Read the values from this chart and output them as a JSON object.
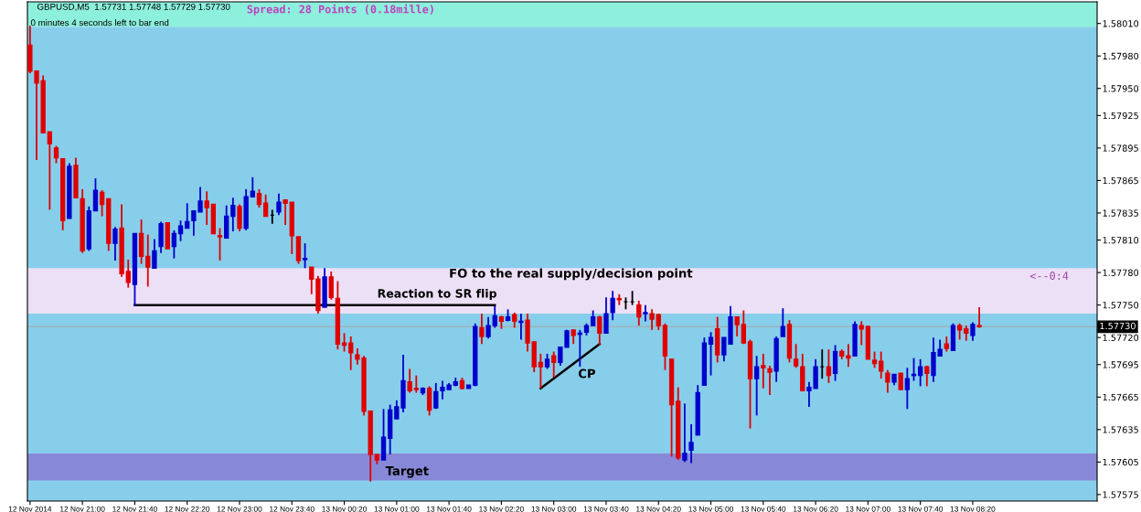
{
  "chart_data": {
    "type": "candlestick",
    "title": "GBPUSD,M5  1.57731 1.57748 1.57729 1.57730",
    "x": [
      "2014-11-12T20:20",
      "2014-11-12T20:25",
      "2014-11-12T20:30",
      "2014-11-12T20:35",
      "2014-11-12T20:40",
      "2014-11-12T20:45",
      "2014-11-12T20:50",
      "2014-11-12T20:55",
      "2014-11-12T21:00",
      "2014-11-12T21:05",
      "2014-11-12T21:10",
      "2014-11-12T21:15",
      "2014-11-12T21:20",
      "2014-11-12T21:25",
      "2014-11-12T21:30",
      "2014-11-12T21:35",
      "2014-11-12T21:40",
      "2014-11-12T21:45",
      "2014-11-12T21:50",
      "2014-11-12T21:55",
      "2014-11-12T22:00",
      "2014-11-12T22:05",
      "2014-11-12T22:10",
      "2014-11-12T22:15",
      "2014-11-12T22:20",
      "2014-11-12T22:25",
      "2014-11-12T22:30",
      "2014-11-12T22:35",
      "2014-11-12T22:40",
      "2014-11-12T22:45",
      "2014-11-12T22:50",
      "2014-11-12T22:55",
      "2014-11-12T23:00",
      "2014-11-12T23:05",
      "2014-11-12T23:10",
      "2014-11-12T23:15",
      "2014-11-12T23:20",
      "2014-11-12T23:25",
      "2014-11-12T23:30",
      "2014-11-12T23:35",
      "2014-11-12T23:40",
      "2014-11-12T23:45",
      "2014-11-12T23:50",
      "2014-11-12T23:55",
      "2014-11-13T00:00",
      "2014-11-13T00:05",
      "2014-11-13T00:10",
      "2014-11-13T00:15",
      "2014-11-13T00:20",
      "2014-11-13T00:25",
      "2014-11-13T00:30",
      "2014-11-13T00:35",
      "2014-11-13T00:40",
      "2014-11-13T00:45",
      "2014-11-13T00:50",
      "2014-11-13T00:55",
      "2014-11-13T01:00",
      "2014-11-13T01:05",
      "2014-11-13T01:10",
      "2014-11-13T01:15",
      "2014-11-13T01:20",
      "2014-11-13T01:25",
      "2014-11-13T01:30",
      "2014-11-13T01:35",
      "2014-11-13T01:40",
      "2014-11-13T01:45",
      "2014-11-13T01:50",
      "2014-11-13T01:55",
      "2014-11-13T02:00",
      "2014-11-13T02:05",
      "2014-11-13T02:10",
      "2014-11-13T02:15",
      "2014-11-13T02:20",
      "2014-11-13T02:25",
      "2014-11-13T02:30",
      "2014-11-13T02:35",
      "2014-11-13T02:40",
      "2014-11-13T02:45",
      "2014-11-13T02:50",
      "2014-11-13T02:55",
      "2014-11-13T03:00",
      "2014-11-13T03:05",
      "2014-11-13T03:10",
      "2014-11-13T03:15",
      "2014-11-13T03:20",
      "2014-11-13T03:25",
      "2014-11-13T03:30",
      "2014-11-13T03:35",
      "2014-11-13T03:40",
      "2014-11-13T03:45",
      "2014-11-13T03:50",
      "2014-11-13T03:55",
      "2014-11-13T04:00",
      "2014-11-13T04:05",
      "2014-11-13T04:10",
      "2014-11-13T04:15",
      "2014-11-13T04:20",
      "2014-11-13T04:25",
      "2014-11-13T04:30",
      "2014-11-13T04:35",
      "2014-11-13T04:40",
      "2014-11-13T04:45",
      "2014-11-13T04:50",
      "2014-11-13T04:55",
      "2014-11-13T05:00",
      "2014-11-13T05:05",
      "2014-11-13T05:10",
      "2014-11-13T05:15",
      "2014-11-13T05:20",
      "2014-11-13T05:25",
      "2014-11-13T05:30",
      "2014-11-13T05:35",
      "2014-11-13T05:40",
      "2014-11-13T05:45",
      "2014-11-13T05:50",
      "2014-11-13T05:55",
      "2014-11-13T06:00",
      "2014-11-13T06:05",
      "2014-11-13T06:10",
      "2014-11-13T06:15",
      "2014-11-13T06:20",
      "2014-11-13T06:25",
      "2014-11-13T06:30",
      "2014-11-13T06:35",
      "2014-11-13T06:40",
      "2014-11-13T06:45",
      "2014-11-13T06:50",
      "2014-11-13T06:55",
      "2014-11-13T07:00",
      "2014-11-13T07:05",
      "2014-11-13T07:10",
      "2014-11-13T07:15",
      "2014-11-13T07:20",
      "2014-11-13T07:25",
      "2014-11-13T07:30",
      "2014-11-13T07:35",
      "2014-11-13T07:40",
      "2014-11-13T07:45",
      "2014-11-13T07:50",
      "2014-11-13T07:55",
      "2014-11-13T08:00",
      "2014-11-13T08:05",
      "2014-11-13T08:10",
      "2014-11-13T08:15",
      "2014-11-13T08:20",
      "2014-11-13T08:25"
    ],
    "ohlc": [
      [
        1.5799,
        1.58008,
        1.57964,
        1.57966
      ],
      [
        1.57966,
        1.57966,
        1.57884,
        1.57955
      ],
      [
        1.57957,
        1.57962,
        1.57909,
        1.57909
      ],
      [
        1.5791,
        1.5791,
        1.57838,
        1.57899
      ],
      [
        1.57895,
        1.57897,
        1.57881,
        1.57886
      ],
      [
        1.57885,
        1.57885,
        1.57819,
        1.57828
      ],
      [
        1.5783,
        1.57881,
        1.5783,
        1.57878
      ],
      [
        1.57879,
        1.57886,
        1.57849,
        1.57849
      ],
      [
        1.57848,
        1.57857,
        1.57798,
        1.578
      ],
      [
        1.57802,
        1.57841,
        1.578,
        1.57837
      ],
      [
        1.57837,
        1.57867,
        1.57837,
        1.57856
      ],
      [
        1.57854,
        1.57856,
        1.57832,
        1.57843
      ],
      [
        1.57848,
        1.57848,
        1.578,
        1.57807
      ],
      [
        1.57807,
        1.57822,
        1.57791,
        1.5782
      ],
      [
        1.57821,
        1.57843,
        1.57776,
        1.57779
      ],
      [
        1.57781,
        1.57792,
        1.57766,
        1.57771
      ],
      [
        1.57769,
        1.57816,
        1.57749,
        1.57816
      ],
      [
        1.57816,
        1.57829,
        1.57788,
        1.57795
      ],
      [
        1.57795,
        1.57815,
        1.57767,
        1.57785
      ],
      [
        1.57784,
        1.57811,
        1.57784,
        1.578
      ],
      [
        1.57804,
        1.57827,
        1.57798,
        1.57825
      ],
      [
        1.57826,
        1.57826,
        1.57802,
        1.57802
      ],
      [
        1.57804,
        1.57819,
        1.57793,
        1.57816
      ],
      [
        1.57816,
        1.57828,
        1.57809,
        1.57823
      ],
      [
        1.57821,
        1.57844,
        1.57821,
        1.57827
      ],
      [
        1.57828,
        1.57837,
        1.57814,
        1.57837
      ],
      [
        1.57836,
        1.57859,
        1.57836,
        1.57846
      ],
      [
        1.57846,
        1.57855,
        1.57824,
        1.5784
      ],
      [
        1.57843,
        1.57843,
        1.57816,
        1.57816
      ],
      [
        1.57814,
        1.57821,
        1.57791,
        1.57813
      ],
      [
        1.57812,
        1.57842,
        1.57812,
        1.57832
      ],
      [
        1.57832,
        1.57849,
        1.57818,
        1.57842
      ],
      [
        1.57841,
        1.57843,
        1.57818,
        1.57821
      ],
      [
        1.57821,
        1.57857,
        1.57819,
        1.5785
      ],
      [
        1.5785,
        1.57868,
        1.5785,
        1.57855
      ],
      [
        1.57853,
        1.57857,
        1.5784,
        1.57843
      ],
      [
        1.57844,
        1.57852,
        1.57832,
        1.57832
      ],
      [
        1.57833,
        1.57838,
        1.57825,
        1.57833
      ],
      [
        1.57836,
        1.57853,
        1.57833,
        1.57845
      ],
      [
        1.57847,
        1.57847,
        1.57824,
        1.57844
      ],
      [
        1.57845,
        1.57845,
        1.57797,
        1.57814
      ],
      [
        1.57813,
        1.57813,
        1.57788,
        1.57791
      ],
      [
        1.57792,
        1.57807,
        1.57784,
        1.57793
      ],
      [
        1.57785,
        1.57785,
        1.5776,
        1.57774
      ],
      [
        1.57774,
        1.57777,
        1.57742,
        1.57745
      ],
      [
        1.57748,
        1.57784,
        1.57748,
        1.57776
      ],
      [
        1.57776,
        1.57781,
        1.57755,
        1.57757
      ],
      [
        1.57756,
        1.57772,
        1.57709,
        1.57714
      ],
      [
        1.57715,
        1.57724,
        1.57707,
        1.57713
      ],
      [
        1.57715,
        1.57721,
        1.5769,
        1.57706
      ],
      [
        1.57704,
        1.5771,
        1.57695,
        1.577
      ],
      [
        1.57701,
        1.57703,
        1.57648,
        1.57652
      ],
      [
        1.57652,
        1.57652,
        1.57587,
        1.57612
      ],
      [
        1.57612,
        1.57612,
        1.57603,
        1.57607
      ],
      [
        1.57607,
        1.57654,
        1.57607,
        1.57628
      ],
      [
        1.57627,
        1.57658,
        1.57612,
        1.57653
      ],
      [
        1.57645,
        1.57662,
        1.57645,
        1.57656
      ],
      [
        1.57655,
        1.57704,
        1.57651,
        1.5768
      ],
      [
        1.57679,
        1.57691,
        1.57669,
        1.57671
      ],
      [
        1.57673,
        1.57685,
        1.57669,
        1.57672
      ],
      [
        1.57669,
        1.57674,
        1.57667,
        1.57673
      ],
      [
        1.57673,
        1.57675,
        1.57648,
        1.57653
      ],
      [
        1.57655,
        1.57678,
        1.57654,
        1.5767
      ],
      [
        1.57671,
        1.5768,
        1.57663,
        1.57674
      ],
      [
        1.57672,
        1.57678,
        1.57672,
        1.57676
      ],
      [
        1.57676,
        1.57683,
        1.57675,
        1.57679
      ],
      [
        1.5768,
        1.57683,
        1.57672,
        1.57673
      ],
      [
        1.57673,
        1.57676,
        1.57673,
        1.57676
      ],
      [
        1.57676,
        1.57733,
        1.57675,
        1.5773
      ],
      [
        1.57729,
        1.57742,
        1.57714,
        1.57721
      ],
      [
        1.57721,
        1.57739,
        1.57719,
        1.57731
      ],
      [
        1.57731,
        1.57749,
        1.57729,
        1.5774
      ],
      [
        1.57739,
        1.5774,
        1.57728,
        1.57735
      ],
      [
        1.57736,
        1.57746,
        1.57735,
        1.57739
      ],
      [
        1.57741,
        1.57743,
        1.57729,
        1.57735
      ],
      [
        1.57734,
        1.57742,
        1.57718,
        1.57735
      ],
      [
        1.57736,
        1.57742,
        1.57707,
        1.57715
      ],
      [
        1.57716,
        1.57716,
        1.57688,
        1.57693
      ],
      [
        1.57697,
        1.57705,
        1.57673,
        1.57693
      ],
      [
        1.57693,
        1.57705,
        1.57691,
        1.577
      ],
      [
        1.57703,
        1.57707,
        1.57683,
        1.57697
      ],
      [
        1.57697,
        1.57711,
        1.57694,
        1.57711
      ],
      [
        1.57711,
        1.57727,
        1.57711,
        1.57726
      ],
      [
        1.57727,
        1.57727,
        1.57714,
        1.57722
      ],
      [
        1.57723,
        1.57727,
        1.57693,
        1.57724
      ],
      [
        1.57725,
        1.57733,
        1.57722,
        1.57731
      ],
      [
        1.57731,
        1.57745,
        1.57731,
        1.57739
      ],
      [
        1.57739,
        1.5774,
        1.57713,
        1.57724
      ],
      [
        1.57724,
        1.57757,
        1.57724,
        1.57742
      ],
      [
        1.57743,
        1.57763,
        1.57736,
        1.57756
      ],
      [
        1.57756,
        1.5776,
        1.5775,
        1.57755
      ],
      [
        1.57753,
        1.57757,
        1.57746,
        1.57753
      ],
      [
        1.57753,
        1.57763,
        1.5775,
        1.57753
      ],
      [
        1.5775,
        1.57754,
        1.57731,
        1.57739
      ],
      [
        1.57742,
        1.5775,
        1.57735,
        1.57743
      ],
      [
        1.57742,
        1.57746,
        1.57727,
        1.57737
      ],
      [
        1.57741,
        1.57742,
        1.57727,
        1.57731
      ],
      [
        1.57731,
        1.57733,
        1.5769,
        1.57703
      ],
      [
        1.577,
        1.577,
        1.5761,
        1.57658
      ],
      [
        1.57661,
        1.57674,
        1.57607,
        1.57609
      ],
      [
        1.57607,
        1.57659,
        1.57605,
        1.57613
      ],
      [
        1.57616,
        1.5764,
        1.57604,
        1.57623
      ],
      [
        1.5763,
        1.57676,
        1.5763,
        1.57669
      ],
      [
        1.57676,
        1.5772,
        1.57676,
        1.57715
      ],
      [
        1.57714,
        1.57725,
        1.57685,
        1.5772
      ],
      [
        1.57728,
        1.57739,
        1.57697,
        1.57704
      ],
      [
        1.57704,
        1.5772,
        1.57698,
        1.5772
      ],
      [
        1.57714,
        1.57749,
        1.57714,
        1.57739
      ],
      [
        1.57739,
        1.57739,
        1.57721,
        1.57732
      ],
      [
        1.57732,
        1.57745,
        1.57714,
        1.57715
      ],
      [
        1.57716,
        1.57718,
        1.57636,
        1.57682
      ],
      [
        1.57682,
        1.57703,
        1.57648,
        1.57693
      ],
      [
        1.57694,
        1.57705,
        1.57673,
        1.57692
      ],
      [
        1.57691,
        1.57694,
        1.57667,
        1.57688
      ],
      [
        1.57689,
        1.57721,
        1.57679,
        1.57719
      ],
      [
        1.57721,
        1.57747,
        1.57721,
        1.5773
      ],
      [
        1.57732,
        1.57736,
        1.57697,
        1.57701
      ],
      [
        1.577,
        1.57714,
        1.57692,
        1.57694
      ],
      [
        1.57693,
        1.57705,
        1.57671,
        1.57671
      ],
      [
        1.57671,
        1.57679,
        1.57656,
        1.57674
      ],
      [
        1.57673,
        1.577,
        1.57673,
        1.57693
      ],
      [
        1.57693,
        1.57709,
        1.57682,
        1.57693
      ],
      [
        1.57693,
        1.57709,
        1.57678,
        1.57685
      ],
      [
        1.57687,
        1.57713,
        1.5768,
        1.57707
      ],
      [
        1.57707,
        1.57709,
        1.577,
        1.57703
      ],
      [
        1.57703,
        1.57714,
        1.57693,
        1.57701
      ],
      [
        1.57703,
        1.57735,
        1.57703,
        1.57732
      ],
      [
        1.57731,
        1.57735,
        1.57713,
        1.57728
      ],
      [
        1.5773,
        1.57731,
        1.577,
        1.577
      ],
      [
        1.57699,
        1.57707,
        1.57692,
        1.57696
      ],
      [
        1.57698,
        1.57707,
        1.57682,
        1.57689
      ],
      [
        1.57687,
        1.5769,
        1.57669,
        1.57679
      ],
      [
        1.57679,
        1.57686,
        1.57676,
        1.57686
      ],
      [
        1.57687,
        1.57687,
        1.57672,
        1.57672
      ],
      [
        1.57672,
        1.57692,
        1.57654,
        1.57682
      ],
      [
        1.57685,
        1.57701,
        1.5768,
        1.57686
      ],
      [
        1.57685,
        1.577,
        1.57675,
        1.57693
      ],
      [
        1.57693,
        1.57694,
        1.57675,
        1.57687
      ],
      [
        1.57685,
        1.5772,
        1.57679,
        1.57706
      ],
      [
        1.57703,
        1.57718,
        1.57703,
        1.57709
      ],
      [
        1.57714,
        1.57721,
        1.57707,
        1.5771
      ],
      [
        1.57708,
        1.57733,
        1.57708,
        1.57731
      ],
      [
        1.57731,
        1.57733,
        1.57718,
        1.57727
      ],
      [
        1.57728,
        1.57731,
        1.57717,
        1.57724
      ],
      [
        1.57722,
        1.57734,
        1.57717,
        1.57732
      ],
      [
        1.57731,
        1.57748,
        1.57729,
        1.5773
      ]
    ],
    "colors": [
      "#e00000",
      "#e00000",
      "#e00000",
      "#e00000",
      "#e00000",
      "#e00000",
      "#0000cc",
      "#e00000",
      "#e00000",
      "#0000cc",
      "#0000cc",
      "#e00000",
      "#e00000",
      "#0000cc",
      "#e00000",
      "#e00000",
      "#0000cc",
      "#e00000",
      "#e00000",
      "#0000cc",
      "#0000cc",
      "#e00000",
      "#0000cc",
      "#0000cc",
      "#0000cc",
      "#0000cc",
      "#0000cc",
      "#e00000",
      "#e00000",
      "#e00000",
      "#0000cc",
      "#0000cc",
      "#e00000",
      "#0000cc",
      "#0000cc",
      "#e00000",
      "#e00000",
      "#000000",
      "#0000cc",
      "#e00000",
      "#e00000",
      "#e00000",
      "#0000cc",
      "#e00000",
      "#e00000",
      "#0000cc",
      "#e00000",
      "#e00000",
      "#e00000",
      "#e00000",
      "#e00000",
      "#e00000",
      "#e00000",
      "#e00000",
      "#0000cc",
      "#0000cc",
      "#0000cc",
      "#0000cc",
      "#e00000",
      "#e00000",
      "#0000cc",
      "#e00000",
      "#0000cc",
      "#0000cc",
      "#0000cc",
      "#0000cc",
      "#e00000",
      "#0000cc",
      "#0000cc",
      "#e00000",
      "#0000cc",
      "#0000cc",
      "#e00000",
      "#0000cc",
      "#e00000",
      "#0000cc",
      "#e00000",
      "#e00000",
      "#e00000",
      "#0000cc",
      "#e00000",
      "#0000cc",
      "#0000cc",
      "#e00000",
      "#0000cc",
      "#0000cc",
      "#0000cc",
      "#e00000",
      "#0000cc",
      "#0000cc",
      "#e00000",
      "#000000",
      "#000000",
      "#e00000",
      "#0000cc",
      "#e00000",
      "#e00000",
      "#e00000",
      "#e00000",
      "#e00000",
      "#0000cc",
      "#0000cc",
      "#0000cc",
      "#0000cc",
      "#0000cc",
      "#e00000",
      "#0000cc",
      "#0000cc",
      "#e00000",
      "#e00000",
      "#e00000",
      "#0000cc",
      "#e00000",
      "#e00000",
      "#0000cc",
      "#0000cc",
      "#e00000",
      "#e00000",
      "#e00000",
      "#0000cc",
      "#0000cc",
      "#000000",
      "#e00000",
      "#0000cc",
      "#e00000",
      "#e00000",
      "#0000cc",
      "#e00000",
      "#e00000",
      "#e00000",
      "#e00000",
      "#e00000",
      "#0000cc",
      "#e00000",
      "#0000cc",
      "#0000cc",
      "#0000cc",
      "#e00000",
      "#0000cc",
      "#0000cc",
      "#e00000",
      "#0000cc",
      "#e00000",
      "#e00000",
      "#0000cc",
      "#e00000"
    ],
    "series": [
      {
        "type": "line",
        "x": [
          "2014-11-12T21:40",
          "2014-11-13T02:15"
        ],
        "values": [
          1.5775,
          1.5775
        ],
        "color": "#000000"
      },
      {
        "type": "line",
        "x": [
          "2014-11-13T02:50",
          "2014-11-13T03:35"
        ],
        "values": [
          1.57673,
          1.57714
        ],
        "color": "#000000"
      }
    ],
    "bands": [
      {
        "axis": "y",
        "from": 1.57569,
        "to": 1.58007,
        "color": "#87ceeb"
      },
      {
        "axis": "y",
        "from": 1.58007,
        "to": 1.5803,
        "color": "#8cf0dc"
      },
      {
        "axis": "y",
        "from": 1.57742,
        "to": 1.57784,
        "color": "#ece0f6"
      },
      {
        "axis": "y",
        "from": 1.57588,
        "to": 1.57613,
        "color": "#8888d8"
      }
    ],
    "ref_lines": [
      {
        "axis": "y",
        "value": 1.5773,
        "label": "1.57730",
        "color": "#a8a8a8"
      }
    ],
    "annotations": [
      "Spread: 28 Points (0.18mille)",
      "0 minutes 4 seconds left to bar end",
      "Reaction to SR flip",
      "FO to the real supply/decision point",
      "CP",
      "Target",
      "<--0:4"
    ],
    "xlim": [
      "2014-11-12T20:18",
      "2014-11-13T09:55"
    ],
    "xticks": [
      {
        "value": "2014-11-12T20:20",
        "label": "12 Nov 2014"
      },
      {
        "value": "2014-11-12T21:00",
        "label": "12 Nov 21:00"
      },
      {
        "value": "2014-11-12T21:40",
        "label": "12 Nov 21:40"
      },
      {
        "value": "2014-11-12T22:20",
        "label": "12 Nov 22:20"
      },
      {
        "value": "2014-11-12T23:00",
        "label": "12 Nov 23:00"
      },
      {
        "value": "2014-11-12T23:40",
        "label": "12 Nov 23:40"
      },
      {
        "value": "2014-11-13T00:20",
        "label": "13 Nov 00:20"
      },
      {
        "value": "2014-11-13T01:00",
        "label": "13 Nov 01:00"
      },
      {
        "value": "2014-11-13T01:40",
        "label": "13 Nov 01:40"
      },
      {
        "value": "2014-11-13T02:20",
        "label": "13 Nov 02:20"
      },
      {
        "value": "2014-11-13T03:00",
        "label": "13 Nov 03:00"
      },
      {
        "value": "2014-11-13T03:40",
        "label": "13 Nov 03:40"
      },
      {
        "value": "2014-11-13T04:20",
        "label": "13 Nov 04:20"
      },
      {
        "value": "2014-11-13T05:00",
        "label": "13 Nov 05:00"
      },
      {
        "value": "2014-11-13T05:40",
        "label": "13 Nov 05:40"
      },
      {
        "value": "2014-11-13T06:20",
        "label": "13 Nov 06:20"
      },
      {
        "value": "2014-11-13T07:00",
        "label": "13 Nov 07:00"
      },
      {
        "value": "2014-11-13T07:40",
        "label": "13 Nov 07:40"
      },
      {
        "value": "2014-11-13T08:20",
        "label": "13 Nov 08:20"
      }
    ],
    "ylim": [
      1.57569,
      1.5803
    ],
    "yticks": [
      {
        "value": 1.5801,
        "label": "1.58010"
      },
      {
        "value": 1.5798,
        "label": "1.57980"
      },
      {
        "value": 1.5795,
        "label": "1.57950"
      },
      1.57925,
      1.57895,
      1.57865,
      1.57835,
      {
        "value": 1.5781,
        "label": "1.57810"
      },
      {
        "value": 1.5778,
        "label": "1.57780"
      },
      {
        "value": 1.5775,
        "label": "1.57750"
      },
      {
        "value": 1.5772,
        "label": "1.57720"
      },
      1.57695,
      1.57665,
      1.57635,
      1.57605,
      1.57575
    ],
    "grid": false,
    "legend": false
  }
}
